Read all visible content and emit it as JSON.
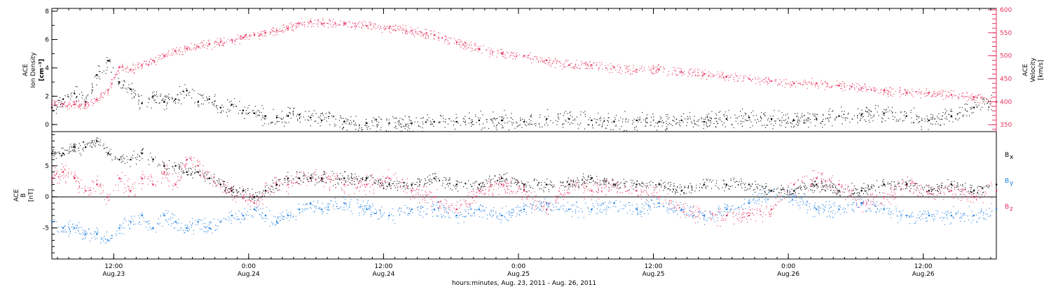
{
  "colors": {
    "black": "#000000",
    "pink": "#e8315f",
    "blue": "#1f7fe0"
  },
  "footer_label": "hours:minutes, Aug. 23, 2011 - Aug. 26, 2011",
  "chart_data": [
    {
      "type": "scatter",
      "panel": "ace-density-velocity",
      "ylabel": [
        "ACE",
        "Ion Density",
        "[cm⁻³]"
      ],
      "ylabel_right": [
        "ACE",
        "Velocity",
        "[km/s]"
      ],
      "x_range_hours": [
        0,
        84
      ],
      "ylim": [
        -0.5,
        8.2
      ],
      "ylim_right": [
        335,
        603
      ],
      "y_ticks": [
        0,
        2,
        4,
        6,
        8
      ],
      "y_ticks_right": [
        350,
        400,
        450,
        500,
        550,
        600
      ],
      "series": [
        {
          "key": "density",
          "axis": "left",
          "color": "#000000",
          "x": [
            0,
            1,
            2,
            3,
            4,
            5,
            6,
            7,
            8,
            9,
            10,
            11,
            12,
            13,
            14,
            15,
            16,
            17,
            18,
            19,
            20,
            21,
            22,
            23,
            24,
            26,
            28,
            30,
            32,
            34,
            36,
            38,
            40,
            42,
            44,
            46,
            48,
            50,
            52,
            54,
            56,
            58,
            60,
            62,
            64,
            66,
            68,
            70,
            72,
            74,
            76,
            78,
            80,
            82,
            84
          ],
          "values": [
            1.2,
            1.8,
            2.2,
            1.6,
            3.5,
            4.5,
            3.0,
            2.5,
            1.5,
            2.0,
            1.6,
            1.8,
            2.4,
            1.6,
            1.8,
            1.2,
            1.4,
            1.0,
            0.8,
            0.6,
            0.5,
            0.6,
            0.7,
            0.5,
            0.3,
            0.2,
            0.1,
            0.1,
            0.1,
            0.2,
            0.2,
            0.3,
            0.3,
            0.2,
            0.4,
            0.4,
            0.3,
            0.2,
            0.3,
            0.2,
            0.3,
            0.2,
            0.4,
            0.5,
            0.4,
            0.3,
            0.4,
            0.6,
            0.7,
            0.8,
            0.6,
            0.3,
            0.6,
            1.2,
            1.6
          ]
        },
        {
          "key": "velocity",
          "axis": "right",
          "color": "#e8315f",
          "x": [
            0,
            1,
            2,
            3,
            4,
            5,
            6,
            7,
            8,
            9,
            10,
            11,
            12,
            13,
            14,
            15,
            16,
            17,
            18,
            19,
            20,
            21,
            22,
            23,
            24,
            26,
            28,
            30,
            32,
            34,
            36,
            38,
            40,
            42,
            44,
            46,
            48,
            50,
            52,
            54,
            56,
            58,
            60,
            62,
            64,
            66,
            68,
            70,
            72,
            74,
            76,
            78,
            80,
            82,
            84
          ],
          "values": [
            395,
            395,
            395,
            395,
            405,
            425,
            475,
            470,
            480,
            490,
            500,
            510,
            515,
            520,
            525,
            530,
            535,
            540,
            545,
            550,
            555,
            560,
            570,
            575,
            570,
            570,
            565,
            560,
            555,
            545,
            530,
            515,
            505,
            500,
            490,
            480,
            480,
            475,
            470,
            470,
            465,
            460,
            455,
            450,
            445,
            440,
            440,
            435,
            430,
            425,
            420,
            420,
            415,
            410,
            400
          ]
        }
      ]
    },
    {
      "type": "scatter",
      "panel": "ace-b-field",
      "ylabel": [
        "ACE",
        "B",
        "[nT]"
      ],
      "x_range_hours": [
        0,
        84
      ],
      "ylim": [
        -10,
        10.5
      ],
      "y_ticks": [
        -5,
        0,
        5
      ],
      "zero_line": true,
      "x_ticks": [
        {
          "hour": 5.5,
          "time": "12:00",
          "date": "Aug.23"
        },
        {
          "hour": 17.5,
          "time": "0:00",
          "date": "Aug.24"
        },
        {
          "hour": 29.5,
          "time": "12:00",
          "date": "Aug.24"
        },
        {
          "hour": 41.5,
          "time": "0:00",
          "date": "Aug.25"
        },
        {
          "hour": 53.5,
          "time": "12:00",
          "date": "Aug.25"
        },
        {
          "hour": 65.5,
          "time": "0:00",
          "date": "Aug.26"
        },
        {
          "hour": 77.5,
          "time": "12:00",
          "date": "Aug.26"
        }
      ],
      "legend": [
        {
          "label": "B",
          "sub": "x",
          "color": "#000000"
        },
        {
          "label": "B",
          "sub": "y",
          "color": "#1f7fe0"
        },
        {
          "label": "B",
          "sub": "z",
          "color": "#e8315f"
        }
      ],
      "series": [
        {
          "key": "bx",
          "color": "#000000",
          "x": [
            0,
            1,
            2,
            3,
            4,
            5,
            6,
            7,
            8,
            9,
            10,
            11,
            12,
            13,
            14,
            15,
            16,
            17,
            18,
            19,
            20,
            21,
            22,
            23,
            24,
            26,
            28,
            30,
            32,
            34,
            36,
            38,
            40,
            42,
            44,
            46,
            48,
            50,
            52,
            54,
            56,
            58,
            60,
            62,
            64,
            66,
            68,
            70,
            72,
            74,
            76,
            78,
            80,
            82,
            84
          ],
          "values": [
            7,
            7,
            8,
            8,
            9,
            7,
            6,
            6,
            7,
            6,
            5,
            5,
            4,
            4,
            3,
            2,
            1,
            1,
            0,
            1,
            2,
            3,
            3,
            3,
            3,
            3,
            3,
            2,
            2,
            3,
            2,
            2,
            3,
            2,
            2,
            2,
            3,
            2,
            2,
            2,
            1,
            2,
            2,
            2,
            1,
            1,
            2,
            1,
            1,
            2,
            2,
            1,
            2,
            1,
            2
          ]
        },
        {
          "key": "by",
          "color": "#1f7fe0",
          "x": [
            0,
            1,
            2,
            3,
            4,
            5,
            6,
            7,
            8,
            9,
            10,
            11,
            12,
            13,
            14,
            15,
            16,
            17,
            18,
            19,
            20,
            21,
            22,
            23,
            24,
            26,
            28,
            30,
            32,
            34,
            36,
            38,
            40,
            42,
            44,
            46,
            48,
            50,
            52,
            54,
            56,
            58,
            60,
            62,
            64,
            66,
            68,
            70,
            72,
            74,
            76,
            78,
            80,
            82,
            84
          ],
          "values": [
            -4,
            -5,
            -5,
            -6,
            -6,
            -7,
            -5,
            -4,
            -3,
            -5,
            -3,
            -4,
            -5,
            -4,
            -5,
            -4,
            -3,
            -3,
            -2,
            -3,
            -4,
            -3,
            -2,
            -1,
            -2,
            -1,
            -2,
            -3,
            -2,
            -2,
            -3,
            -2,
            -3,
            -2,
            -1,
            -2,
            -2,
            -1,
            -2,
            -1,
            -2,
            -3,
            -2,
            -1,
            1,
            0,
            -2,
            -2,
            -1,
            -2,
            -3,
            -3,
            -3,
            -3,
            -2
          ]
        },
        {
          "key": "bz",
          "color": "#e8315f",
          "x": [
            0,
            1,
            2,
            3,
            4,
            5,
            6,
            7,
            8,
            9,
            10,
            11,
            12,
            13,
            14,
            15,
            16,
            17,
            18,
            19,
            20,
            21,
            22,
            23,
            24,
            26,
            28,
            30,
            32,
            34,
            36,
            38,
            40,
            42,
            44,
            46,
            48,
            50,
            52,
            54,
            56,
            58,
            60,
            62,
            64,
            66,
            68,
            70,
            72,
            74,
            76,
            78,
            80,
            82,
            84
          ],
          "values": [
            3,
            4,
            3,
            1,
            2,
            0,
            3,
            1,
            3,
            2,
            4,
            2,
            6,
            5,
            3,
            2,
            1,
            0,
            -1,
            1,
            2,
            2,
            3,
            3,
            3,
            2,
            2,
            3,
            1,
            0,
            -2,
            1,
            2,
            1,
            -2,
            2,
            1,
            2,
            1,
            0,
            -2,
            -3,
            -3,
            -3,
            -2,
            2,
            3,
            2,
            -1,
            0,
            2,
            1,
            1,
            0,
            1
          ]
        }
      ]
    }
  ]
}
